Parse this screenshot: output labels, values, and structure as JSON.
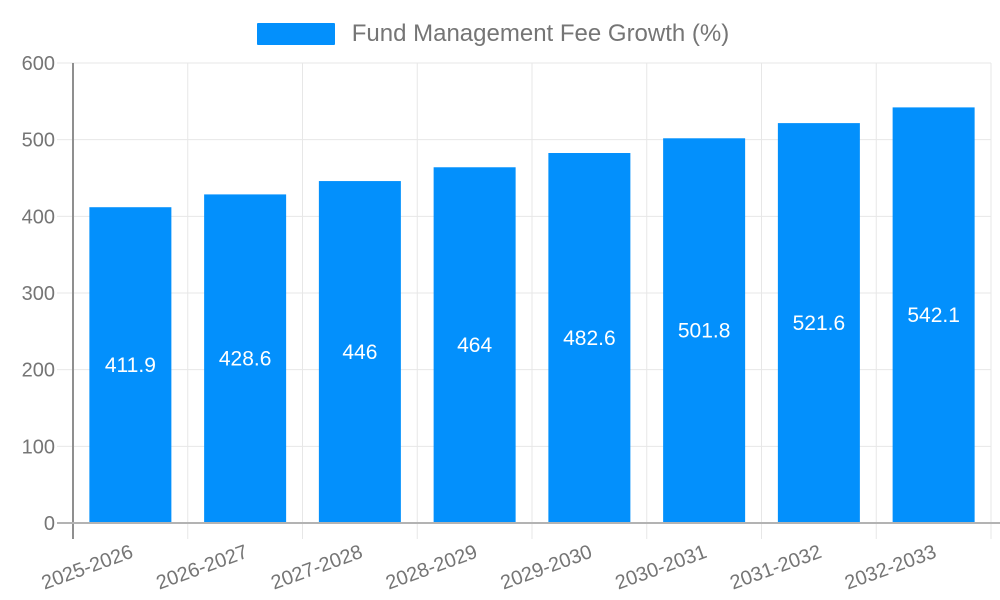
{
  "legend": {
    "label": "Fund Management Fee Growth (%)"
  },
  "colors": {
    "bar": "#0390fc",
    "grid": "#e7e7e7",
    "axis_label": "#757575",
    "y_axis_line": "#8f8f8f",
    "x_axis_line": "#b3b3b3",
    "value_label": "#ffffff"
  },
  "chart_data": {
    "type": "bar",
    "title": "",
    "series_name": "Fund Management Fee Growth (%)",
    "categories": [
      "2025-2026",
      "2026-2027",
      "2027-2028",
      "2028-2029",
      "2029-2030",
      "2030-2031",
      "2031-2032",
      "2032-2033"
    ],
    "values": [
      411.9,
      428.6,
      446,
      464,
      482.6,
      501.8,
      521.6,
      542.1
    ],
    "xlabel": "",
    "ylabel": "",
    "ylim": [
      0,
      600
    ],
    "yticks": [
      0,
      100,
      200,
      300,
      400,
      500,
      600
    ],
    "grid": true,
    "legend_position": "top",
    "value_labels_inside_bars": true,
    "x_label_rotation_deg": -20
  }
}
